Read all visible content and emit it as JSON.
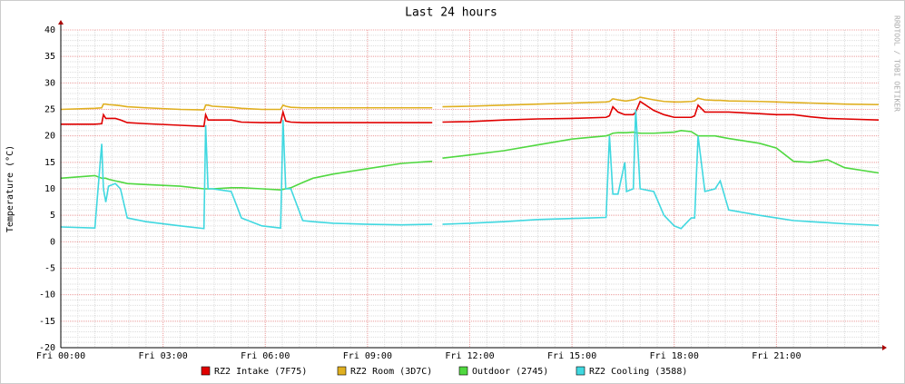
{
  "chart_data": {
    "type": "line",
    "title": "Last 24 hours",
    "y_label": "Temperature (°C)",
    "side_text": "RRDTOOL / TOBI OETIKER",
    "x": [
      0,
      1.0,
      1.2,
      1.25,
      1.32,
      1.4,
      1.6,
      1.75,
      1.95,
      2.5,
      3.5,
      4.2,
      4.25,
      4.32,
      4.45,
      5.0,
      5.3,
      5.9,
      6.45,
      6.52,
      6.6,
      6.75,
      7.1,
      7.4,
      8.0,
      9.0,
      10.0,
      10.9,
      11.0,
      11.2,
      12.0,
      13.0,
      14.0,
      15.0,
      16.0,
      16.1,
      16.2,
      16.35,
      16.55,
      16.6,
      16.8,
      16.87,
      17.0,
      17.4,
      17.7,
      18.0,
      18.2,
      18.5,
      18.6,
      18.7,
      18.9,
      19.2,
      19.35,
      19.6,
      20.5,
      21.0,
      21.5,
      22.0,
      22.5,
      23.0,
      24.0
    ],
    "series": [
      {
        "name": "RZ2 Intake (7F75)",
        "color": "#e00000",
        "values": [
          22.2,
          22.2,
          22.3,
          24,
          23.3,
          23.3,
          23.3,
          23,
          22.5,
          22.3,
          22,
          21.8,
          24,
          23,
          23,
          23,
          22.6,
          22.5,
          22.5,
          24.5,
          22.8,
          22.6,
          22.5,
          22.5,
          22.5,
          22.5,
          22.5,
          22.5,
          null,
          22.6,
          22.7,
          23,
          23.2,
          23.3,
          23.5,
          23.8,
          25.5,
          24.5,
          24,
          24,
          24,
          24.5,
          26.5,
          24.8,
          24,
          23.5,
          23.5,
          23.5,
          23.8,
          25.8,
          24.5,
          24.5,
          24.5,
          24.5,
          24.2,
          24,
          24,
          23.6,
          23.3,
          23.2,
          23
        ]
      },
      {
        "name": "RZ2 Room (3D7C)",
        "color": "#e0b020",
        "values": [
          25,
          25.2,
          25.3,
          26,
          26,
          25.9,
          25.8,
          25.7,
          25.5,
          25.3,
          25,
          24.9,
          25.8,
          25.8,
          25.6,
          25.4,
          25.2,
          25,
          25,
          25.8,
          25.6,
          25.4,
          25.3,
          25.3,
          25.3,
          25.3,
          25.3,
          25.3,
          null,
          25.5,
          25.6,
          25.8,
          26,
          26.2,
          26.4,
          26.5,
          27,
          26.8,
          26.6,
          26.6,
          26.8,
          26.9,
          27.3,
          26.8,
          26.5,
          26.4,
          26.4,
          26.5,
          26.6,
          27.1,
          26.8,
          26.7,
          26.7,
          26.6,
          26.5,
          26.4,
          26.3,
          26.2,
          26.1,
          26,
          25.9
        ]
      },
      {
        "name": "Outdoor (2745)",
        "color": "#50d840",
        "values": [
          12,
          12.5,
          12,
          12,
          12,
          11.8,
          11.5,
          11.3,
          11,
          10.8,
          10.5,
          10,
          10,
          10,
          10,
          10.2,
          10.2,
          10,
          9.8,
          9.9,
          10,
          10.2,
          11.2,
          12,
          12.8,
          13.8,
          14.8,
          15.2,
          null,
          15.8,
          16.4,
          17.2,
          18.3,
          19.4,
          20,
          20.2,
          20.5,
          20.6,
          20.6,
          20.6,
          20.7,
          20.6,
          20.5,
          20.5,
          20.6,
          20.7,
          21,
          20.8,
          20.4,
          20,
          20,
          20,
          19.8,
          19.5,
          18.6,
          17.7,
          15.2,
          15,
          15.5,
          14,
          13
        ]
      },
      {
        "name": "RZ2 Cooling (3588)",
        "color": "#40d8e0",
        "values": [
          2.8,
          2.6,
          18.5,
          10,
          7.5,
          10.5,
          11,
          10,
          4.5,
          3.8,
          3,
          2.5,
          22,
          10,
          10,
          9.5,
          4.5,
          3,
          2.6,
          23,
          10,
          10,
          4,
          3.8,
          3.5,
          3.3,
          3.2,
          3.3,
          null,
          3.3,
          3.5,
          3.8,
          4.2,
          4.4,
          4.6,
          20,
          9,
          9,
          15,
          9.5,
          10,
          25,
          10,
          9.5,
          5,
          3,
          2.5,
          4.5,
          4.5,
          20,
          9.5,
          10,
          11.5,
          6,
          5,
          4.5,
          4,
          3.8,
          3.6,
          3.4,
          3.1
        ]
      }
    ],
    "xlim": [
      0,
      24
    ],
    "xticks": [
      {
        "value": 0,
        "label": "Fri 00:00"
      },
      {
        "value": 3,
        "label": "Fri 03:00"
      },
      {
        "value": 6,
        "label": "Fri 06:00"
      },
      {
        "value": 9,
        "label": "Fri 09:00"
      },
      {
        "value": 12,
        "label": "Fri 12:00"
      },
      {
        "value": 15,
        "label": "Fri 15:00"
      },
      {
        "value": 18,
        "label": "Fri 18:00"
      },
      {
        "value": 21,
        "label": "Fri 21:00"
      }
    ],
    "ylim": [
      -20,
      40
    ],
    "yticks": [
      -20,
      -15,
      -10,
      -5,
      0,
      5,
      10,
      15,
      20,
      25,
      30,
      35,
      40
    ],
    "grid": true
  }
}
